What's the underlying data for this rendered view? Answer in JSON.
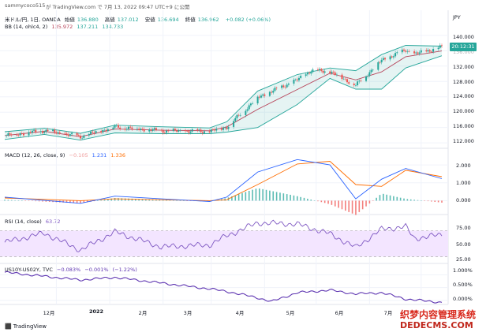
{
  "header": {
    "user": "sammycoco515",
    "via": "が TradingView.com で 7月 13, 2022 09:47 UTC+9 に公開"
  },
  "legends": {
    "main_symbol": "米ドル/円, 1日, OANDA",
    "ohlc": [
      {
        "label": "始値",
        "value": "136.880"
      },
      {
        "label": "高値",
        "value": "137.012"
      },
      {
        "label": "安値",
        "value": "136.694"
      },
      {
        "label": "終値",
        "value": "136.962"
      },
      {
        "label": "",
        "value": "+0.082 (+0.06%)"
      }
    ],
    "bb": {
      "name": "BB (14, ohlc4, 2)",
      "values": [
        "135.972",
        "137.211",
        "134.733"
      ]
    },
    "macd": {
      "name": "MACD (12, 26, close, 9)",
      "values": [
        "−0.105",
        "1.231",
        "1.336"
      ]
    },
    "rsi": {
      "name": "RSI (14, close)",
      "value": "63.72"
    },
    "us10y": {
      "name": "US10Y-US02Y, TVC",
      "values": [
        "−0.083%",
        "−0.001%",
        "(−1.22%)"
      ]
    }
  },
  "colors": {
    "up": "#26a69a",
    "down": "#ef5350",
    "bb_band": "#26a69a",
    "bb_basis": "#b7445a",
    "macd_line": "#2962ff",
    "signal_line": "#ff6d00",
    "rsi_line": "#7e57c2",
    "rsi_fill": "#f3e5ff",
    "us10y_line": "#5e35b1",
    "price_tag": "#26a69a"
  },
  "price_tag": "20:12:31",
  "chart_data": [
    {
      "type": "candlestick",
      "title": "米ドル/円, 1日, OANDA",
      "y_axis_label": "JPY",
      "y_ticks": [
        "140.000",
        "136.000",
        "132.000",
        "128.000",
        "124.000",
        "120.000",
        "116.000",
        "112.000"
      ],
      "ylim": [
        111,
        141
      ],
      "x_ticks": [
        "12月",
        "2022",
        "2月",
        "3月",
        "4月",
        "5月",
        "6月",
        "7月"
      ],
      "x_range": [
        "2021-11-01",
        "2022-07-13"
      ],
      "close_series": [
        {
          "x": "2021-11-01",
          "y": 113.9
        },
        {
          "x": "2021-11-24",
          "y": 115.2
        },
        {
          "x": "2021-12-15",
          "y": 113.6
        },
        {
          "x": "2022-01-04",
          "y": 116.2
        },
        {
          "x": "2022-01-31",
          "y": 115.1
        },
        {
          "x": "2022-02-28",
          "y": 115.0
        },
        {
          "x": "2022-03-10",
          "y": 116.1
        },
        {
          "x": "2022-03-28",
          "y": 123.8
        },
        {
          "x": "2022-04-20",
          "y": 128.4
        },
        {
          "x": "2022-04-28",
          "y": 130.8
        },
        {
          "x": "2022-05-09",
          "y": 130.6
        },
        {
          "x": "2022-05-24",
          "y": 127.0
        },
        {
          "x": "2022-06-08",
          "y": 133.5
        },
        {
          "x": "2022-06-22",
          "y": 136.2
        },
        {
          "x": "2022-06-27",
          "y": 135.1
        },
        {
          "x": "2022-07-13",
          "y": 136.96
        }
      ],
      "bb_upper_series": [
        {
          "x": "2021-11-01",
          "y": 114.9
        },
        {
          "x": "2021-11-24",
          "y": 115.8
        },
        {
          "x": "2021-12-15",
          "y": 114.5
        },
        {
          "x": "2022-01-04",
          "y": 116.6
        },
        {
          "x": "2022-01-31",
          "y": 116.2
        },
        {
          "x": "2022-02-28",
          "y": 115.9
        },
        {
          "x": "2022-03-10",
          "y": 117.5
        },
        {
          "x": "2022-03-28",
          "y": 125.5
        },
        {
          "x": "2022-04-20",
          "y": 129.8
        },
        {
          "x": "2022-05-09",
          "y": 131.5
        },
        {
          "x": "2022-05-24",
          "y": 130.8
        },
        {
          "x": "2022-06-08",
          "y": 135.0
        },
        {
          "x": "2022-06-22",
          "y": 137.4
        },
        {
          "x": "2022-07-13",
          "y": 137.2
        }
      ],
      "bb_lower_series": [
        {
          "x": "2021-11-01",
          "y": 112.9
        },
        {
          "x": "2021-11-24",
          "y": 114.2
        },
        {
          "x": "2021-12-15",
          "y": 112.7
        },
        {
          "x": "2022-01-04",
          "y": 114.6
        },
        {
          "x": "2022-01-31",
          "y": 114.4
        },
        {
          "x": "2022-02-28",
          "y": 114.4
        },
        {
          "x": "2022-03-10",
          "y": 114.8
        },
        {
          "x": "2022-03-28",
          "y": 116.0
        },
        {
          "x": "2022-04-20",
          "y": 122.0
        },
        {
          "x": "2022-05-09",
          "y": 128.8
        },
        {
          "x": "2022-05-24",
          "y": 126.0
        },
        {
          "x": "2022-06-08",
          "y": 126.0
        },
        {
          "x": "2022-06-22",
          "y": 131.5
        },
        {
          "x": "2022-07-13",
          "y": 134.7
        }
      ]
    },
    {
      "type": "line",
      "title": "MACD (12, 26, close, 9)",
      "y_ticks": [
        "2.000",
        "1.000",
        "0.000"
      ],
      "ylim": [
        -0.6,
        2.4
      ],
      "macd_series": [
        {
          "x": "2021-11-01",
          "y": 0.2
        },
        {
          "x": "2021-12-15",
          "y": -0.15
        },
        {
          "x": "2022-01-04",
          "y": 0.25
        },
        {
          "x": "2022-02-28",
          "y": -0.05
        },
        {
          "x": "2022-03-10",
          "y": 0.2
        },
        {
          "x": "2022-03-28",
          "y": 1.6
        },
        {
          "x": "2022-04-20",
          "y": 2.3
        },
        {
          "x": "2022-05-09",
          "y": 2.0
        },
        {
          "x": "2022-05-24",
          "y": 0.1
        },
        {
          "x": "2022-06-08",
          "y": 1.2
        },
        {
          "x": "2022-06-22",
          "y": 1.8
        },
        {
          "x": "2022-07-13",
          "y": 1.23
        }
      ],
      "signal_series": [
        {
          "x": "2021-11-01",
          "y": 0.15
        },
        {
          "x": "2021-12-15",
          "y": 0.0
        },
        {
          "x": "2022-01-04",
          "y": 0.1
        },
        {
          "x": "2022-02-28",
          "y": 0.0
        },
        {
          "x": "2022-03-10",
          "y": 0.05
        },
        {
          "x": "2022-03-28",
          "y": 0.9
        },
        {
          "x": "2022-04-20",
          "y": 2.05
        },
        {
          "x": "2022-05-09",
          "y": 2.2
        },
        {
          "x": "2022-05-24",
          "y": 0.9
        },
        {
          "x": "2022-06-08",
          "y": 0.8
        },
        {
          "x": "2022-06-22",
          "y": 1.7
        },
        {
          "x": "2022-07-13",
          "y": 1.34
        }
      ]
    },
    {
      "type": "line",
      "title": "RSI (14, close)",
      "y_ticks": [
        "75.00",
        "50.00",
        "25.00"
      ],
      "ylim": [
        22,
        85
      ],
      "band": [
        30,
        70
      ],
      "series": [
        {
          "x": "2021-11-01",
          "y": 52
        },
        {
          "x": "2021-11-24",
          "y": 66
        },
        {
          "x": "2021-12-15",
          "y": 40
        },
        {
          "x": "2022-01-04",
          "y": 68
        },
        {
          "x": "2022-01-31",
          "y": 45
        },
        {
          "x": "2022-02-28",
          "y": 48
        },
        {
          "x": "2022-03-10",
          "y": 62
        },
        {
          "x": "2022-03-28",
          "y": 82
        },
        {
          "x": "2022-04-20",
          "y": 80
        },
        {
          "x": "2022-05-09",
          "y": 65
        },
        {
          "x": "2022-05-24",
          "y": 44
        },
        {
          "x": "2022-06-08",
          "y": 72
        },
        {
          "x": "2022-06-22",
          "y": 76
        },
        {
          "x": "2022-06-27",
          "y": 58
        },
        {
          "x": "2022-07-13",
          "y": 63.72
        }
      ]
    },
    {
      "type": "line",
      "title": "US10Y-US02Y, TVC",
      "y_ticks": [
        "1.000%",
        "0.500%",
        "0.000%"
      ],
      "ylim": [
        -0.1,
        1.2
      ],
      "series": [
        {
          "x": "2021-11-01",
          "y": 1.1
        },
        {
          "x": "2021-12-15",
          "y": 0.8
        },
        {
          "x": "2022-01-04",
          "y": 0.9
        },
        {
          "x": "2022-02-28",
          "y": 0.45
        },
        {
          "x": "2022-03-10",
          "y": 0.35
        },
        {
          "x": "2022-03-28",
          "y": 0.1
        },
        {
          "x": "2022-04-05",
          "y": -0.05
        },
        {
          "x": "2022-04-20",
          "y": 0.3
        },
        {
          "x": "2022-05-09",
          "y": 0.4
        },
        {
          "x": "2022-05-24",
          "y": 0.25
        },
        {
          "x": "2022-06-08",
          "y": 0.3
        },
        {
          "x": "2022-06-22",
          "y": 0.05
        },
        {
          "x": "2022-07-13",
          "y": -0.083
        }
      ]
    }
  ],
  "footer": {
    "brand": "TradingView"
  },
  "watermark": {
    "text": "织梦内容管理系统",
    "url": "DEDECMS.COM"
  }
}
